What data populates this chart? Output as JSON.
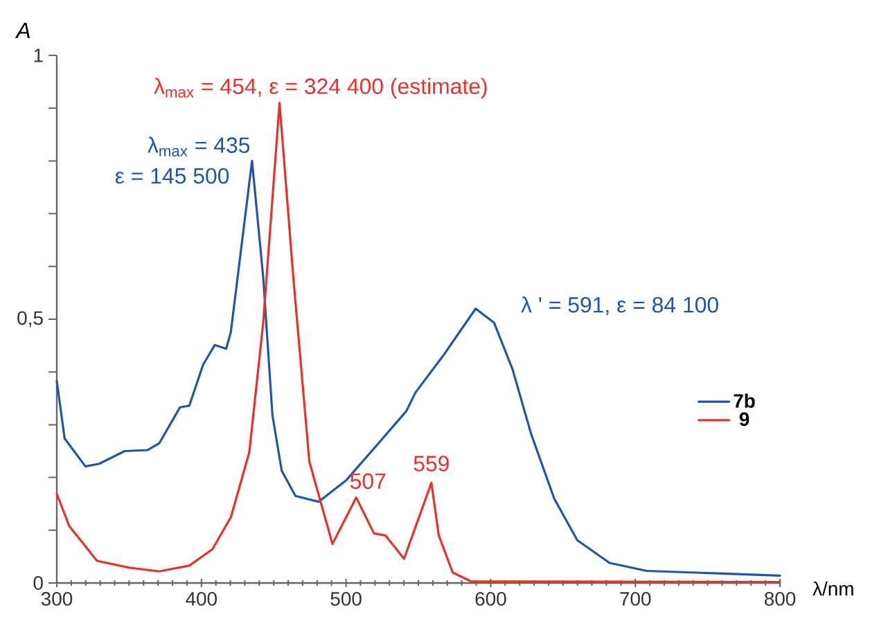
{
  "chart_data": {
    "type": "line",
    "xlabel": "λ/nm",
    "ylabel": "A",
    "xlim": [
      300,
      800
    ],
    "ylim": [
      0,
      1
    ],
    "xticks": [
      300,
      400,
      500,
      600,
      700,
      800
    ],
    "yticks": [
      0,
      {
        "value": 0.1,
        "label": null
      },
      {
        "value": 0.2,
        "label": null
      },
      {
        "value": 0.3,
        "label": null
      },
      {
        "value": 0.4,
        "label": null
      },
      {
        "value": 0.5,
        "label": "0,5"
      },
      {
        "value": 0.6,
        "label": null
      },
      {
        "value": 0.7,
        "label": null
      },
      {
        "value": 0.8,
        "label": null
      },
      {
        "value": 0.9,
        "label": null
      },
      1
    ],
    "legend": "right",
    "series": [
      {
        "name": "7b",
        "color": "#2255a5",
        "x": [
          300,
          305.4,
          319.8,
          329.4,
          346.9,
          362.9,
          370.9,
          385.2,
          391.6,
          401.2,
          409.2,
          417.1,
          420.3,
          435,
          442.7,
          449.1,
          455.5,
          465,
          481,
          500.2,
          522.5,
          541.7,
          548,
          567.2,
          589.6,
          602.4,
          615.1,
          627.9,
          643.9,
          659.9,
          682.2,
          707.8,
          800
        ],
        "values": [
          0.383,
          0.274,
          0.221,
          0.226,
          0.25,
          0.252,
          0.265,
          0.333,
          0.336,
          0.414,
          0.451,
          0.444,
          0.475,
          0.8,
          0.58,
          0.318,
          0.213,
          0.165,
          0.154,
          0.195,
          0.265,
          0.326,
          0.361,
          0.431,
          0.52,
          0.493,
          0.405,
          0.283,
          0.16,
          0.081,
          0.038,
          0.023,
          0.014
        ]
      },
      {
        "name": "9",
        "color": "#e8312a",
        "x": [
          300,
          308.6,
          327.8,
          350.1,
          370.9,
          391.6,
          407.6,
          420.4,
          433.1,
          442.7,
          454,
          463.5,
          474.6,
          490.6,
          507,
          519.3,
          527.3,
          540.1,
          559,
          564.1,
          573.7,
          586.4,
          800
        ],
        "values": [
          0.169,
          0.108,
          0.042,
          0.029,
          0.022,
          0.033,
          0.064,
          0.125,
          0.248,
          0.493,
          0.91,
          0.58,
          0.23,
          0.074,
          0.162,
          0.094,
          0.09,
          0.046,
          0.19,
          0.09,
          0.02,
          0.003,
          0.002
        ]
      }
    ],
    "annotations": [
      {
        "text": "λ$_{max}$ = 435",
        "x": 435,
        "y": 0.8
      },
      {
        "text": "ε = 145 500",
        "x": 435,
        "y": 0.8
      },
      {
        "text": "λ$_{max}$ = 454, ε = 324 400 (estimate)",
        "x": 454,
        "y": 0.91
      },
      {
        "text": "λ ' = 591, ε = 84 100",
        "x": 591,
        "y": 0.52
      },
      {
        "text": "507",
        "x": 507,
        "y": 0.162
      },
      {
        "text": "559",
        "x": 559,
        "y": 0.19
      }
    ]
  }
}
